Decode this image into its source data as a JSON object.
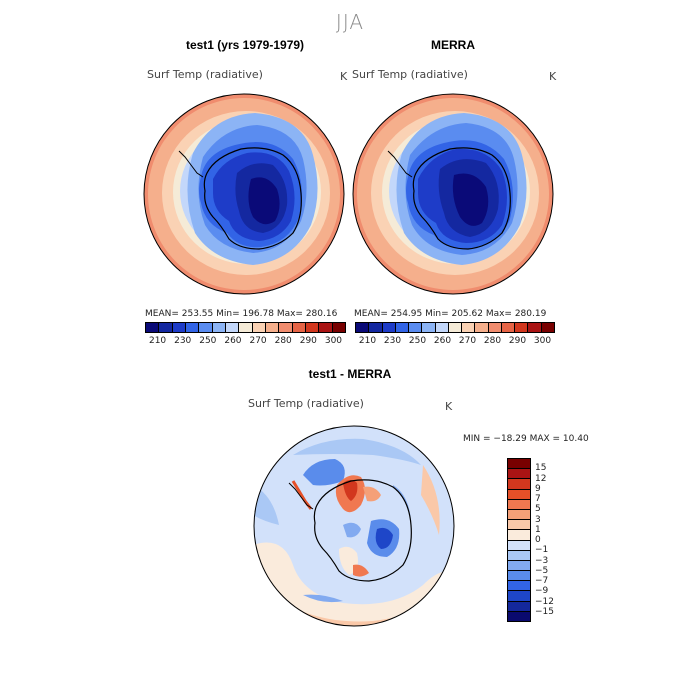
{
  "figure": {
    "title": "JJA"
  },
  "panels": [
    {
      "title": "test1 (yrs 1979-1979)",
      "variable": "Surf Temp (radiative)",
      "units": "K",
      "stats": "MEAN= 253.55   Min= 196.78   Max= 280.16"
    },
    {
      "title": "MERRA",
      "variable": "Surf Temp (radiative)",
      "units": "K",
      "stats": "MEAN= 254.95   Min= 205.62   Max= 280.19"
    }
  ],
  "diff_panel": {
    "title": "test1 - MERRA",
    "variable": "Surf Temp (radiative)",
    "units": "K",
    "stats": "MIN = −18.29  MAX =   10.40"
  },
  "colorbar_abs": {
    "colors": [
      "#0a0a78",
      "#1428a0",
      "#1e3cc8",
      "#3264e6",
      "#5a8cf0",
      "#8cb4f5",
      "#c3d7fa",
      "#f5ebd7",
      "#fad2b4",
      "#f5af8c",
      "#f08c6e",
      "#e66446",
      "#d2371e",
      "#aa1414",
      "#780000"
    ],
    "tick_labels": [
      "210",
      "230",
      "250",
      "260",
      "270",
      "280",
      "290",
      "300"
    ]
  },
  "colorbar_diff": {
    "colors": [
      "#780000",
      "#aa1414",
      "#d2371e",
      "#e65028",
      "#f07850",
      "#f5a078",
      "#fac8a8",
      "#faebdc",
      "#d2e1fa",
      "#aac8f5",
      "#82aaf0",
      "#5a8ceb",
      "#3264e6",
      "#1e46c8",
      "#14289b",
      "#0a0a6e"
    ],
    "tick_labels": [
      "15",
      "12",
      "9",
      "7",
      "5",
      "3",
      "1",
      "0",
      "−1",
      "−3",
      "−5",
      "−7",
      "−9",
      "−12",
      "−15"
    ]
  }
}
